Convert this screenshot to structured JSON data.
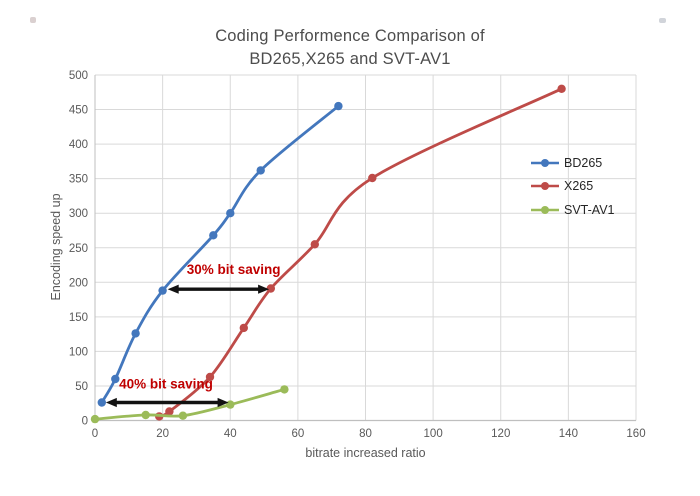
{
  "page": {
    "background": "#ffffff"
  },
  "header": {
    "title_line1": "Coding Performence Comparison of",
    "title_line2": "BD265,X265 and SVT-AV1"
  },
  "chart_data": {
    "type": "line",
    "title": "Coding Performence Comparison of BD265,X265 and SVT-AV1",
    "xlabel": "bitrate increased ratio",
    "ylabel": "Encoding speed up",
    "xlim": [
      0,
      160
    ],
    "ylim": [
      0,
      500
    ],
    "xticks": [
      0,
      20,
      40,
      60,
      80,
      100,
      120,
      140,
      160
    ],
    "yticks": [
      0,
      50,
      100,
      150,
      200,
      250,
      300,
      350,
      400,
      450,
      500
    ],
    "grid": true,
    "smooth_lines": true,
    "legend_position": "inside-right",
    "series": [
      {
        "name": "BD265",
        "color": "#4377BD",
        "points": [
          [
            2,
            26
          ],
          [
            6,
            60
          ],
          [
            12,
            126
          ],
          [
            20,
            188
          ],
          [
            35,
            268
          ],
          [
            40,
            300
          ],
          [
            49,
            362
          ],
          [
            72,
            455
          ]
        ]
      },
      {
        "name": "X265",
        "color": "#BE4B48",
        "points": [
          [
            19,
            6
          ],
          [
            22,
            13
          ],
          [
            34,
            63
          ],
          [
            44,
            134
          ],
          [
            52,
            191
          ],
          [
            65,
            255
          ],
          [
            82,
            351
          ],
          [
            138,
            480
          ]
        ]
      },
      {
        "name": "SVT-AV1",
        "color": "#9BBB59",
        "points": [
          [
            0,
            2
          ],
          [
            15,
            8
          ],
          [
            26,
            7
          ],
          [
            40,
            23
          ],
          [
            56,
            45
          ]
        ]
      }
    ],
    "annotations": [
      {
        "text": "30% bit saving",
        "color": "#C00000",
        "text_at": [
          41,
          212
        ],
        "arrow_from": [
          21.5,
          190
        ],
        "arrow_to": [
          51.5,
          190
        ]
      },
      {
        "text": "40% bit saving",
        "color": "#C00000",
        "text_at": [
          21,
          46
        ],
        "arrow_from": [
          3.2,
          26
        ],
        "arrow_to": [
          39.5,
          26
        ]
      }
    ],
    "colors": {
      "grid": "#D9D9D9",
      "axis": "#BFBFBF",
      "tick_text": "#595959",
      "title_text": "#4d4d4d",
      "legend_text": "#262626",
      "arrow": "#121212"
    }
  }
}
